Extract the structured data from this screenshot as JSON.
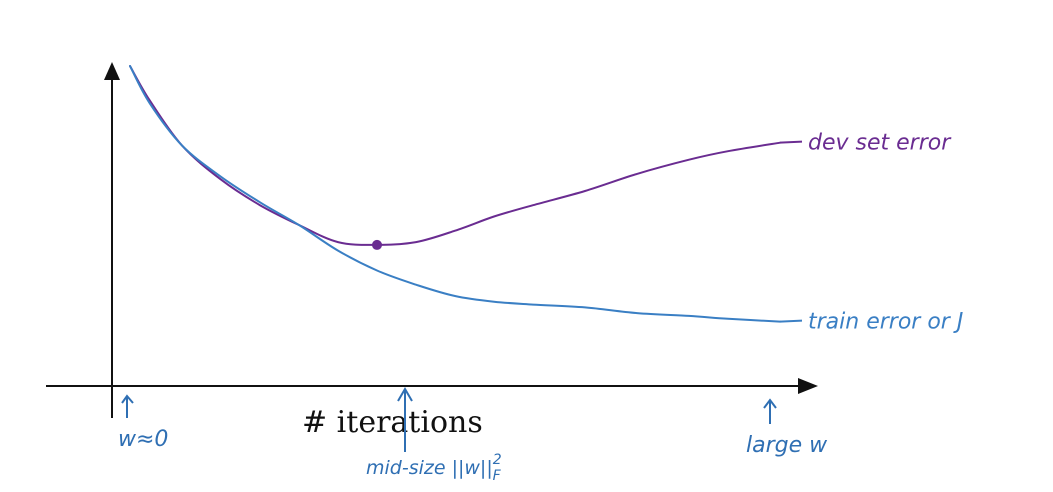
{
  "chart_data": {
    "type": "line",
    "xlabel": "# iterations",
    "ylabel": "",
    "grid": false,
    "legend": "none",
    "xlim": [
      0,
      100
    ],
    "ylim": [
      0,
      100
    ],
    "series": [
      {
        "name": "dev set error",
        "color": "#6a2c91",
        "x": [
          0,
          3,
          8,
          14,
          20,
          26,
          32,
          38,
          44,
          50,
          56,
          62,
          70,
          78,
          86,
          92,
          100
        ],
        "y": [
          100,
          88,
          72,
          60,
          51,
          44,
          38,
          37,
          38,
          42,
          47,
          51,
          56,
          62,
          67,
          70,
          73
        ]
      },
      {
        "name": "train error or J",
        "color": "#3a7fc4",
        "x": [
          0,
          3,
          8,
          14,
          20,
          26,
          32,
          38,
          44,
          50,
          56,
          62,
          70,
          78,
          86,
          92,
          100
        ],
        "y": [
          100,
          87,
          72,
          61,
          52,
          44,
          35,
          28,
          23,
          19,
          17,
          16,
          15,
          13,
          12,
          11,
          10
        ]
      }
    ],
    "marker": {
      "x": 38,
      "y": 37,
      "color": "#6a2c91"
    },
    "annotations": {
      "left": "w≈0",
      "middle": "mid-size ||w||",
      "middle_sup": "2",
      "middle_sub": "F",
      "right": "large w"
    }
  },
  "colors": {
    "axis": "#111111",
    "annotation": "#2f6fb3"
  }
}
